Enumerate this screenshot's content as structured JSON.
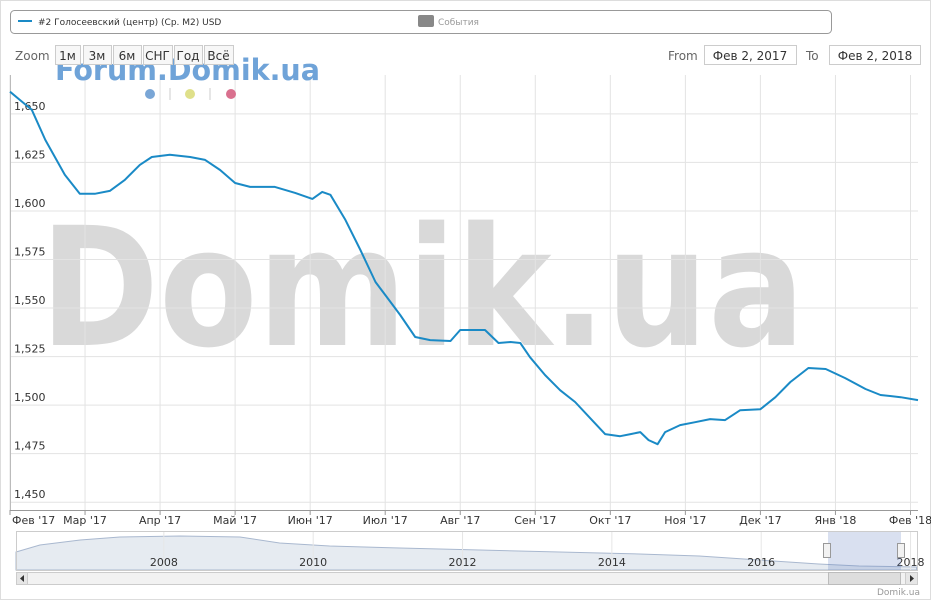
{
  "legend": {
    "events_label": "События"
  },
  "range_selector": {
    "zoom_label": "Zoom",
    "buttons": [
      "1м",
      "3м",
      "6м",
      "СНГ",
      "Год",
      "Всё"
    ],
    "from_label": "From",
    "from_value": "Фев 2, 2017",
    "to_label": "To",
    "to_value": "Фев 2, 2018"
  },
  "watermarks": {
    "forum": "Forum.Domik.ua",
    "main": "Domik.ua"
  },
  "credit": "Domik.ua",
  "chart_data": [
    {
      "type": "line",
      "series": [
        {
          "name": "#2 Голосеевский (центр) (Ср. М2) USD",
          "color": "#1a8ac6",
          "x": [
            0,
            0.13,
            0.29,
            0.47,
            0.73,
            0.93,
            1.13,
            1.33,
            1.53,
            1.73,
            1.89,
            2.13,
            2.4,
            2.6,
            2.8,
            3.0,
            3.2,
            3.53,
            3.8,
            4.03,
            4.16,
            4.27,
            4.47,
            4.67,
            4.87,
            5.07,
            5.2,
            5.4,
            5.6,
            5.87,
            6.0,
            6.33,
            6.51,
            6.67,
            6.8,
            6.93,
            7.13,
            7.33,
            7.53,
            7.73,
            7.93,
            8.13,
            8.27,
            8.4,
            8.51,
            8.63,
            8.73,
            8.93,
            9.13,
            9.33,
            9.53,
            9.73,
            10.0,
            10.2,
            10.4,
            10.64,
            10.87,
            11.13,
            11.4,
            11.6,
            11.87,
            12.1
          ],
          "values": [
            1661.4,
            1657.2,
            1652.1,
            1636.6,
            1618.6,
            1608.8,
            1608.8,
            1610.3,
            1616,
            1623.7,
            1627.8,
            1628.9,
            1627.8,
            1626.3,
            1621.1,
            1614.4,
            1612.4,
            1612.4,
            1609.3,
            1606.2,
            1609.8,
            1608.3,
            1595.4,
            1579.9,
            1563.4,
            1553.1,
            1546.4,
            1535.1,
            1533.5,
            1533,
            1538.7,
            1538.7,
            1532,
            1532.5,
            1532,
            1524.7,
            1515.5,
            1507.7,
            1501.6,
            1493.3,
            1485.1,
            1484,
            1485.1,
            1486.1,
            1482,
            1479.9,
            1486.1,
            1489.7,
            1491.2,
            1492.8,
            1492.3,
            1497.4,
            1497.9,
            1504.1,
            1511.9,
            1519.1,
            1518.6,
            1513.9,
            1508.3,
            1505.2,
            1504.1,
            1502.6
          ]
        }
      ],
      "xlim": [
        0,
        12.1
      ],
      "xticks": [
        {
          "value": 0,
          "label": "Фев '17"
        },
        {
          "value": 1,
          "label": "Мар '17"
        },
        {
          "value": 2,
          "label": "Апр '17"
        },
        {
          "value": 3,
          "label": "Май '17"
        },
        {
          "value": 4,
          "label": "Июн '17"
        },
        {
          "value": 5,
          "label": "Июл '17"
        },
        {
          "value": 6,
          "label": "Авг '17"
        },
        {
          "value": 7,
          "label": "Сен '17"
        },
        {
          "value": 8,
          "label": "Окт '17"
        },
        {
          "value": 9,
          "label": "Ноя '17"
        },
        {
          "value": 10,
          "label": "Дек '17"
        },
        {
          "value": 11,
          "label": "Янв '18"
        },
        {
          "value": 12,
          "label": "Фев '18"
        }
      ],
      "ylim": [
        1446,
        1670
      ],
      "yticks": [
        {
          "value": 1450,
          "label": "1,450"
        },
        {
          "value": 1475,
          "label": "1,475"
        },
        {
          "value": 1500,
          "label": "1,500"
        },
        {
          "value": 1525,
          "label": "1,525"
        },
        {
          "value": 1550,
          "label": "1,550"
        },
        {
          "value": 1575,
          "label": "1,575"
        },
        {
          "value": 1600,
          "label": "1,600"
        },
        {
          "value": 1625,
          "label": "1,625"
        },
        {
          "value": 1650,
          "label": "1,650"
        }
      ],
      "grid": true
    },
    {
      "type": "area",
      "color": "#d6dde8",
      "x": [
        2006.02,
        2006.34,
        2006.88,
        2007.41,
        2008.22,
        2009.02,
        2009.55,
        2010.22,
        2011.16,
        2012.23,
        2013.3,
        2014.37,
        2015.17,
        2015.97,
        2016.77,
        2017.31,
        2018.08
      ],
      "values": [
        2300,
        2650,
        2900,
        3050,
        3100,
        3050,
        2750,
        2600,
        2500,
        2400,
        2300,
        2200,
        2100,
        1900,
        1700,
        1600,
        1550
      ],
      "xlim": [
        2006.02,
        2018.1
      ],
      "ylim": [
        1400,
        3300
      ],
      "xticks": [
        2008,
        2010,
        2012,
        2014,
        2016,
        2018
      ]
    }
  ]
}
